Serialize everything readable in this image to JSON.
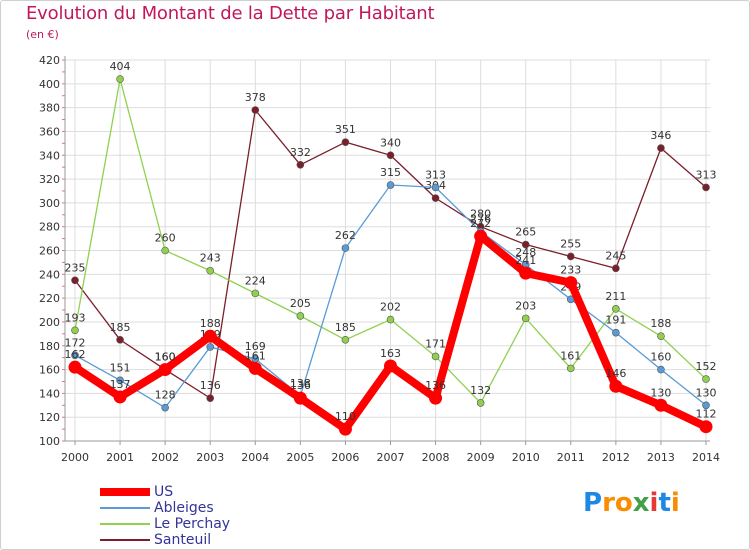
{
  "title": "Evolution du Montant de la Dette par Habitant",
  "subtitle": "(en €)",
  "logo": {
    "letters": [
      "P",
      "r",
      "o",
      "x",
      "i",
      "t",
      "i"
    ],
    "colors": [
      "#1e88e5",
      "#fb8c00",
      "#fb8c00",
      "#43a047",
      "#e53935",
      "#1e88e5",
      "#fb8c00"
    ]
  },
  "chart_data": {
    "type": "line",
    "title": "Evolution du Montant de la Dette par Habitant",
    "ylabel": "(en €)",
    "xlabel": "",
    "x": [
      "2000",
      "2001",
      "2002",
      "2003",
      "2004",
      "2005",
      "2006",
      "2007",
      "2008",
      "2009",
      "2010",
      "2011",
      "2012",
      "2013",
      "2014"
    ],
    "ylim": [
      100,
      420
    ],
    "yticks": [
      100,
      120,
      140,
      160,
      180,
      200,
      220,
      240,
      260,
      280,
      300,
      320,
      340,
      360,
      380,
      400,
      420
    ],
    "grid": true,
    "legend": "bottom-left",
    "series": [
      {
        "name": "Santeuil",
        "color": "#7b1f2a",
        "values": [
          235,
          185,
          160,
          136,
          378,
          332,
          351,
          340,
          304,
          280,
          265,
          255,
          245,
          346,
          313
        ]
      },
      {
        "name": "Le Perchay",
        "color": "#8fd14f",
        "values": [
          193,
          404,
          260,
          243,
          224,
          205,
          185,
          202,
          171,
          132,
          203,
          161,
          211,
          188,
          152
        ]
      },
      {
        "name": "Ableiges",
        "color": "#5b9bd5",
        "values": [
          172,
          151,
          128,
          179,
          169,
          138,
          262,
          315,
          313,
          276,
          248,
          219,
          191,
          160,
          130
        ]
      },
      {
        "name": "US",
        "color": "#ff0000",
        "values": [
          162,
          137,
          160,
          188,
          161,
          136,
          110,
          163,
          136,
          272,
          241,
          233,
          146,
          130,
          112
        ]
      }
    ]
  },
  "legend_items": [
    "US",
    "Ableiges",
    "Le Perchay",
    "Santeuil"
  ]
}
